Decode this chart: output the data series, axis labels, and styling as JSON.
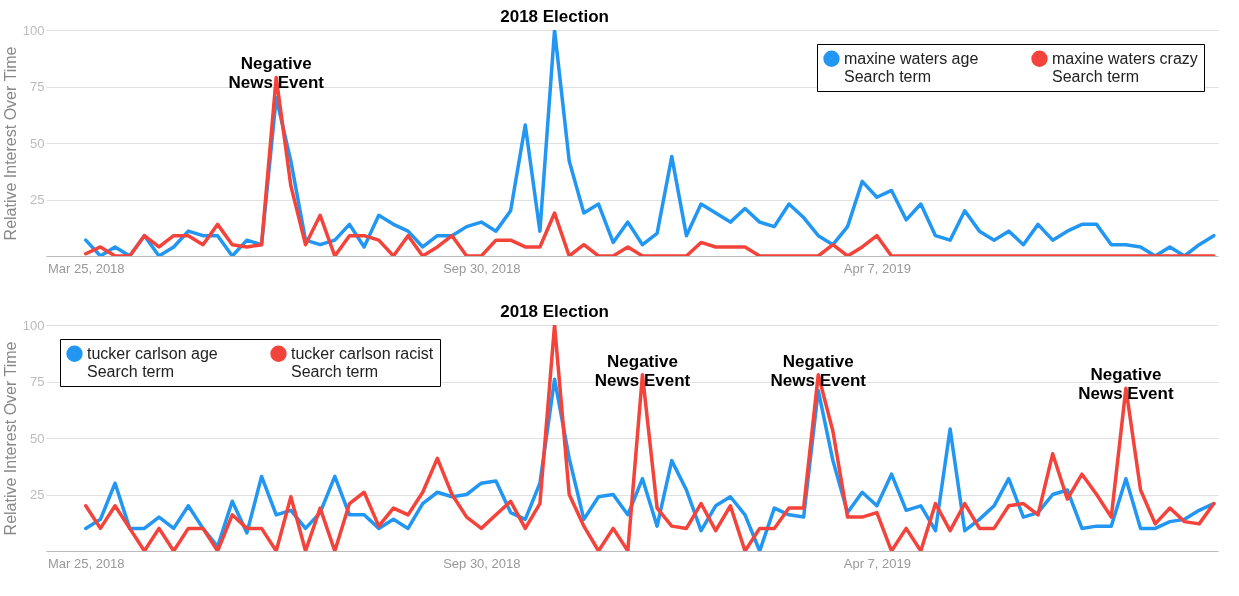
{
  "chart_data": [
    {
      "type": "line",
      "ylabel": "Relative Interest Over Time",
      "x": [
        "2018-03-25",
        "2018-04-01",
        "2018-04-08",
        "2018-04-15",
        "2018-04-22",
        "2018-04-29",
        "2018-05-06",
        "2018-05-13",
        "2018-05-20",
        "2018-05-27",
        "2018-06-03",
        "2018-06-10",
        "2018-06-17",
        "2018-06-24",
        "2018-07-01",
        "2018-07-08",
        "2018-07-15",
        "2018-07-22",
        "2018-07-29",
        "2018-08-05",
        "2018-08-12",
        "2018-08-19",
        "2018-08-26",
        "2018-09-02",
        "2018-09-09",
        "2018-09-16",
        "2018-09-23",
        "2018-09-30",
        "2018-10-07",
        "2018-10-14",
        "2018-10-21",
        "2018-10-28",
        "2018-11-04",
        "2018-11-11",
        "2018-11-18",
        "2018-11-25",
        "2018-12-02",
        "2018-12-09",
        "2018-12-16",
        "2018-12-23",
        "2018-12-30",
        "2019-01-06",
        "2019-01-13",
        "2019-01-20",
        "2019-01-27",
        "2019-02-03",
        "2019-02-10",
        "2019-02-17",
        "2019-02-24",
        "2019-03-03",
        "2019-03-10",
        "2019-03-17",
        "2019-03-24",
        "2019-03-31",
        "2019-04-07",
        "2019-04-14",
        "2019-04-21",
        "2019-04-28",
        "2019-05-05",
        "2019-05-12",
        "2019-05-19",
        "2019-05-26",
        "2019-06-02",
        "2019-06-09",
        "2019-06-16",
        "2019-06-23",
        "2019-06-30",
        "2019-07-07",
        "2019-07-14",
        "2019-07-21",
        "2019-07-28",
        "2019-08-04",
        "2019-08-11",
        "2019-08-18",
        "2019-08-25",
        "2019-09-01",
        "2019-09-08",
        "2019-09-15"
      ],
      "xlim": [
        "2018-03-06",
        "2019-09-17"
      ],
      "xticks": [
        {
          "value": "2018-03-25",
          "label": "Mar 25, 2018"
        },
        {
          "value": "2018-09-30",
          "label": "Sep 30, 2018"
        },
        {
          "value": "2019-04-07",
          "label": "Apr 7, 2019"
        }
      ],
      "ylim": [
        0,
        100
      ],
      "yticks": [
        {
          "value": 0,
          "label": null
        },
        25,
        50,
        75,
        100
      ],
      "grid": "y",
      "legend": "top right",
      "series": [
        {
          "name": "maxine waters age",
          "color": "#2196f3",
          "values": [
            7,
            0,
            4,
            0,
            9,
            0,
            4,
            11,
            9,
            9,
            0,
            7,
            5,
            70,
            42,
            7,
            5,
            7,
            14,
            4,
            18,
            14,
            11,
            4,
            9,
            9,
            13,
            15,
            11,
            20,
            58,
            11,
            100,
            42,
            19,
            23,
            6,
            15,
            5,
            10,
            44,
            9,
            23,
            19,
            15,
            21,
            15,
            13,
            23,
            17,
            9,
            5,
            13,
            33,
            26,
            29,
            16,
            23,
            9,
            7,
            20,
            11,
            7,
            11,
            5,
            14,
            7,
            11,
            14,
            14,
            5,
            5,
            4,
            0,
            4,
            0,
            5,
            9
          ]
        },
        {
          "name": "maxine waters crazy",
          "color": "#f4433a",
          "values": [
            1,
            4,
            0,
            0,
            9,
            4,
            9,
            9,
            5,
            14,
            5,
            4,
            5,
            79,
            31,
            5,
            18,
            0,
            9,
            9,
            7,
            0,
            9,
            0,
            4,
            9,
            0,
            0,
            7,
            7,
            4,
            4,
            19,
            0,
            5,
            0,
            0,
            4,
            0,
            0,
            0,
            0,
            6,
            4,
            4,
            4,
            0,
            0,
            0,
            0,
            0,
            5,
            0,
            4,
            9,
            0,
            0,
            0,
            0,
            0,
            0,
            0,
            0,
            0,
            0,
            0,
            0,
            0,
            0,
            0,
            0,
            0,
            0,
            0,
            0,
            0,
            0,
            0
          ]
        }
      ],
      "annotations": [
        "Search term",
        "Search term",
        {
          "text": "2018 Election",
          "x": "2018-11-04",
          "y": 100
        },
        {
          "text": "Negative\nNews Event",
          "x": "2018-06-24",
          "y": 79
        }
      ]
    },
    {
      "type": "line",
      "ylabel": "Relative Interest Over Time",
      "x": [
        "2018-03-25",
        "2018-04-01",
        "2018-04-08",
        "2018-04-15",
        "2018-04-22",
        "2018-04-29",
        "2018-05-06",
        "2018-05-13",
        "2018-05-20",
        "2018-05-27",
        "2018-06-03",
        "2018-06-10",
        "2018-06-17",
        "2018-06-24",
        "2018-07-01",
        "2018-07-08",
        "2018-07-15",
        "2018-07-22",
        "2018-07-29",
        "2018-08-05",
        "2018-08-12",
        "2018-08-19",
        "2018-08-26",
        "2018-09-02",
        "2018-09-09",
        "2018-09-16",
        "2018-09-23",
        "2018-09-30",
        "2018-10-07",
        "2018-10-14",
        "2018-10-21",
        "2018-10-28",
        "2018-11-04",
        "2018-11-11",
        "2018-11-18",
        "2018-11-25",
        "2018-12-02",
        "2018-12-09",
        "2018-12-16",
        "2018-12-23",
        "2018-12-30",
        "2019-01-06",
        "2019-01-13",
        "2019-01-20",
        "2019-01-27",
        "2019-02-03",
        "2019-02-10",
        "2019-02-17",
        "2019-02-24",
        "2019-03-03",
        "2019-03-10",
        "2019-03-17",
        "2019-03-24",
        "2019-03-31",
        "2019-04-07",
        "2019-04-14",
        "2019-04-21",
        "2019-04-28",
        "2019-05-05",
        "2019-05-12",
        "2019-05-19",
        "2019-05-26",
        "2019-06-02",
        "2019-06-09",
        "2019-06-16",
        "2019-06-23",
        "2019-06-30",
        "2019-07-07",
        "2019-07-14",
        "2019-07-21",
        "2019-07-28",
        "2019-08-04",
        "2019-08-11",
        "2019-08-18",
        "2019-08-25",
        "2019-09-01",
        "2019-09-08",
        "2019-09-15"
      ],
      "xlim": [
        "2018-03-06",
        "2019-09-17"
      ],
      "xticks": [
        {
          "value": "2018-03-25",
          "label": "Mar 25, 2018"
        },
        {
          "value": "2018-09-30",
          "label": "Sep 30, 2018"
        },
        {
          "value": "2019-04-07",
          "label": "Apr 7, 2019"
        }
      ],
      "ylim": [
        0,
        100
      ],
      "yticks": [
        {
          "value": 0,
          "label": null
        },
        25,
        50,
        75,
        100
      ],
      "grid": "y",
      "legend": "top left",
      "series": [
        {
          "name": "tucker carlson age",
          "color": "#2196f3",
          "values": [
            10,
            14,
            30,
            10,
            10,
            15,
            10,
            20,
            10,
            2,
            22,
            8,
            33,
            16,
            18,
            10,
            17,
            33,
            16,
            16,
            10,
            14,
            10,
            21,
            26,
            24,
            25,
            30,
            31,
            17,
            14,
            30,
            76,
            41,
            14,
            24,
            25,
            16,
            32,
            11,
            40,
            27,
            9,
            20,
            24,
            16,
            0,
            19,
            16,
            15,
            71,
            40,
            17,
            26,
            20,
            34,
            18,
            20,
            9,
            54,
            9,
            14,
            20,
            32,
            15,
            17,
            25,
            27,
            10,
            11,
            11,
            32,
            10,
            10,
            13,
            14,
            18,
            21
          ]
        },
        {
          "name": "tucker carlson racist",
          "color": "#f4433a",
          "values": [
            20,
            10,
            20,
            10,
            0,
            10,
            0,
            10,
            10,
            0,
            16,
            10,
            10,
            0,
            24,
            0,
            19,
            0,
            21,
            26,
            11,
            19,
            16,
            26,
            41,
            25,
            15,
            10,
            16,
            22,
            10,
            21,
            100,
            25,
            11,
            0,
            10,
            0,
            78,
            19,
            11,
            10,
            21,
            9,
            20,
            0,
            10,
            10,
            19,
            19,
            78,
            53,
            15,
            15,
            17,
            0,
            10,
            0,
            21,
            9,
            21,
            10,
            10,
            20,
            21,
            16,
            43,
            23,
            34,
            25,
            15,
            72,
            27,
            12,
            19,
            13,
            12,
            21
          ]
        }
      ],
      "annotations": [
        "Search term",
        "Search term",
        {
          "text": "2018 Election",
          "x": "2018-11-04",
          "y": 100
        },
        {
          "text": "Negative\nNews Event",
          "x": "2018-12-16",
          "y": 78
        },
        {
          "text": "Negative\nNews Event",
          "x": "2019-03-10",
          "y": 78
        },
        {
          "text": "Negative\nNews Event",
          "x": "2019-08-04",
          "y": 72
        }
      ]
    }
  ]
}
